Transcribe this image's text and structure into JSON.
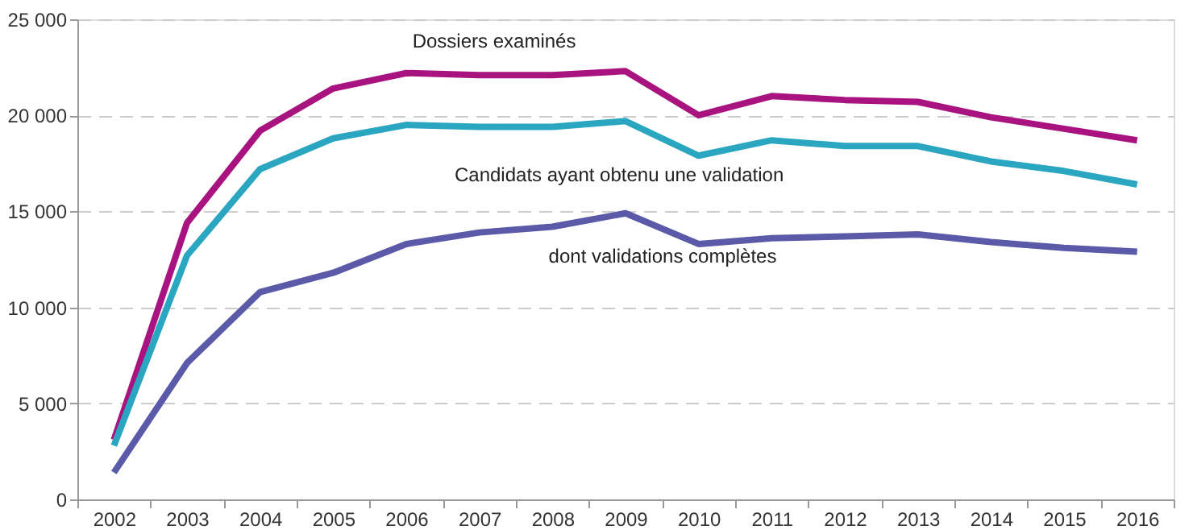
{
  "chart_data": {
    "type": "line",
    "categories": [
      "2002",
      "2003",
      "2004",
      "2005",
      "2006",
      "2007",
      "2008",
      "2009",
      "2010",
      "2011",
      "2012",
      "2013",
      "2014",
      "2015",
      "2016"
    ],
    "series": [
      {
        "name": "Dossiers examinés",
        "color": "#a8137f",
        "values": [
          3100,
          14400,
          19200,
          21400,
          22200,
          22100,
          22100,
          22300,
          20000,
          21000,
          20800,
          20700,
          19900,
          19300,
          18700
        ]
      },
      {
        "name": "Candidats ayant obtenu une validation",
        "color": "#2aa6c0",
        "values": [
          2800,
          12700,
          17200,
          18800,
          19500,
          19400,
          19400,
          19700,
          17900,
          18700,
          18400,
          18400,
          17600,
          17100,
          16400
        ]
      },
      {
        "name": "dont validations complètes",
        "color": "#5a5aa8",
        "values": [
          1400,
          7100,
          10800,
          11800,
          13300,
          13900,
          14200,
          14900,
          13300,
          13600,
          13700,
          13800,
          13400,
          13100,
          12900
        ]
      }
    ],
    "ylim": [
      0,
      25000
    ],
    "yticks": [
      0,
      {
        "value": 5000,
        "label": "5 000"
      },
      {
        "value": 10000,
        "label": "10 000"
      },
      {
        "value": 15000,
        "label": "15 000"
      },
      {
        "value": 20000,
        "label": "20 000"
      },
      {
        "value": 25000,
        "label": "25 000"
      }
    ],
    "grid": "y",
    "marker": "none",
    "line_style": "solid"
  }
}
